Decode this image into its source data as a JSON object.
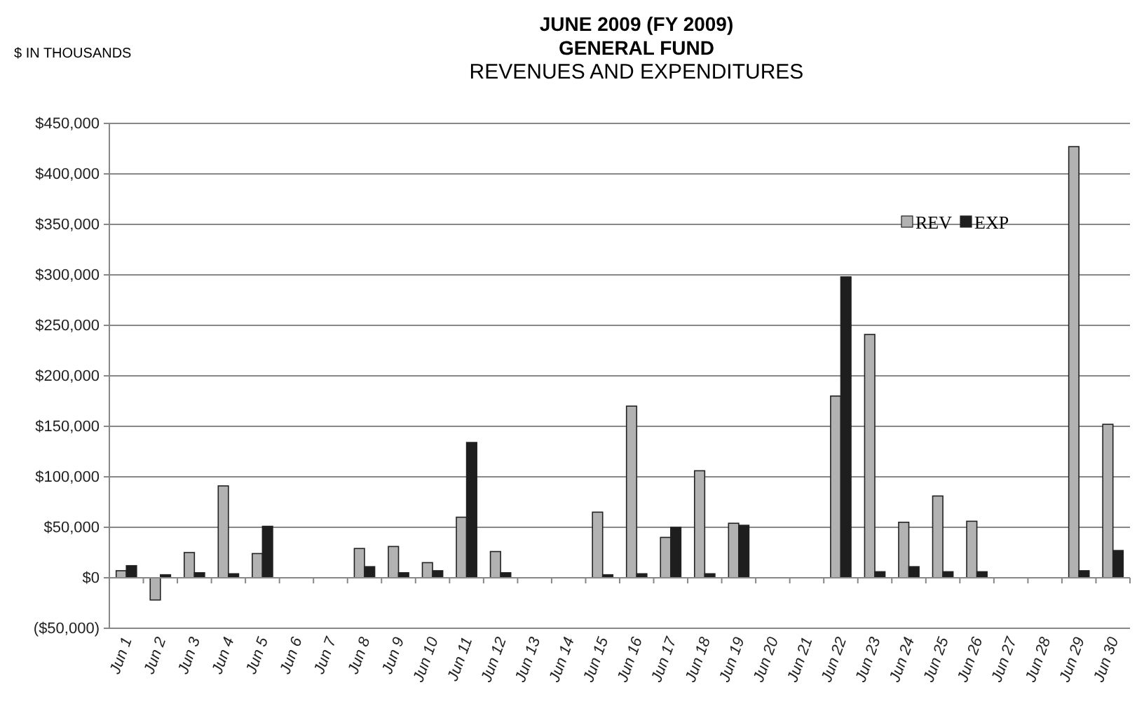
{
  "chart_data": {
    "type": "bar",
    "title": "JUNE 2009 (FY 2009)\nGENERAL FUND",
    "subtitle": "REVENUES AND EXPENDITURES",
    "ylabel": "$ IN THOUSANDS",
    "categories": [
      "Jun 1",
      "Jun 2",
      "Jun 3",
      "Jun 4",
      "Jun 5",
      "Jun 6",
      "Jun 7",
      "Jun 8",
      "Jun 9",
      "Jun 10",
      "Jun 11",
      "Jun 12",
      "Jun 13",
      "Jun 14",
      "Jun 15",
      "Jun 16",
      "Jun 17",
      "Jun 18",
      "Jun 19",
      "Jun 20",
      "Jun 21",
      "Jun 22",
      "Jun 23",
      "Jun 24",
      "Jun 25",
      "Jun 26",
      "Jun 27",
      "Jun 28",
      "Jun 29",
      "Jun 30"
    ],
    "series": [
      {
        "name": "REV",
        "color": "#b2b2b2",
        "values": [
          7000,
          -22000,
          25000,
          91000,
          24000,
          null,
          null,
          29000,
          31000,
          15000,
          60000,
          26000,
          null,
          null,
          65000,
          170000,
          40000,
          106000,
          54000,
          null,
          null,
          180000,
          241000,
          55000,
          81000,
          56000,
          null,
          null,
          427000,
          152000
        ]
      },
      {
        "name": "EXP",
        "color": "#1e1e1e",
        "values": [
          12000,
          3000,
          5000,
          4000,
          51000,
          null,
          null,
          11000,
          5000,
          7000,
          134000,
          5000,
          null,
          null,
          3000,
          4000,
          50000,
          4000,
          52000,
          null,
          null,
          298000,
          6000,
          11000,
          6000,
          6000,
          null,
          null,
          7000,
          27000
        ]
      }
    ],
    "ylim": [
      -50000,
      450000
    ],
    "yticks": [
      {
        "value": -50000,
        "label": "($50,000)"
      },
      {
        "value": 0,
        "label": "$0"
      },
      {
        "value": 50000,
        "label": "$50,000"
      },
      {
        "value": 100000,
        "label": "$100,000"
      },
      {
        "value": 150000,
        "label": "$150,000"
      },
      {
        "value": 200000,
        "label": "$200,000"
      },
      {
        "value": 250000,
        "label": "$250,000"
      },
      {
        "value": 300000,
        "label": "$300,000"
      },
      {
        "value": 350000,
        "label": "$350,000"
      },
      {
        "value": 400000,
        "label": "$400,000"
      },
      {
        "value": 450000,
        "label": "$450,000"
      }
    ],
    "grid": "y",
    "legend": "top right"
  }
}
